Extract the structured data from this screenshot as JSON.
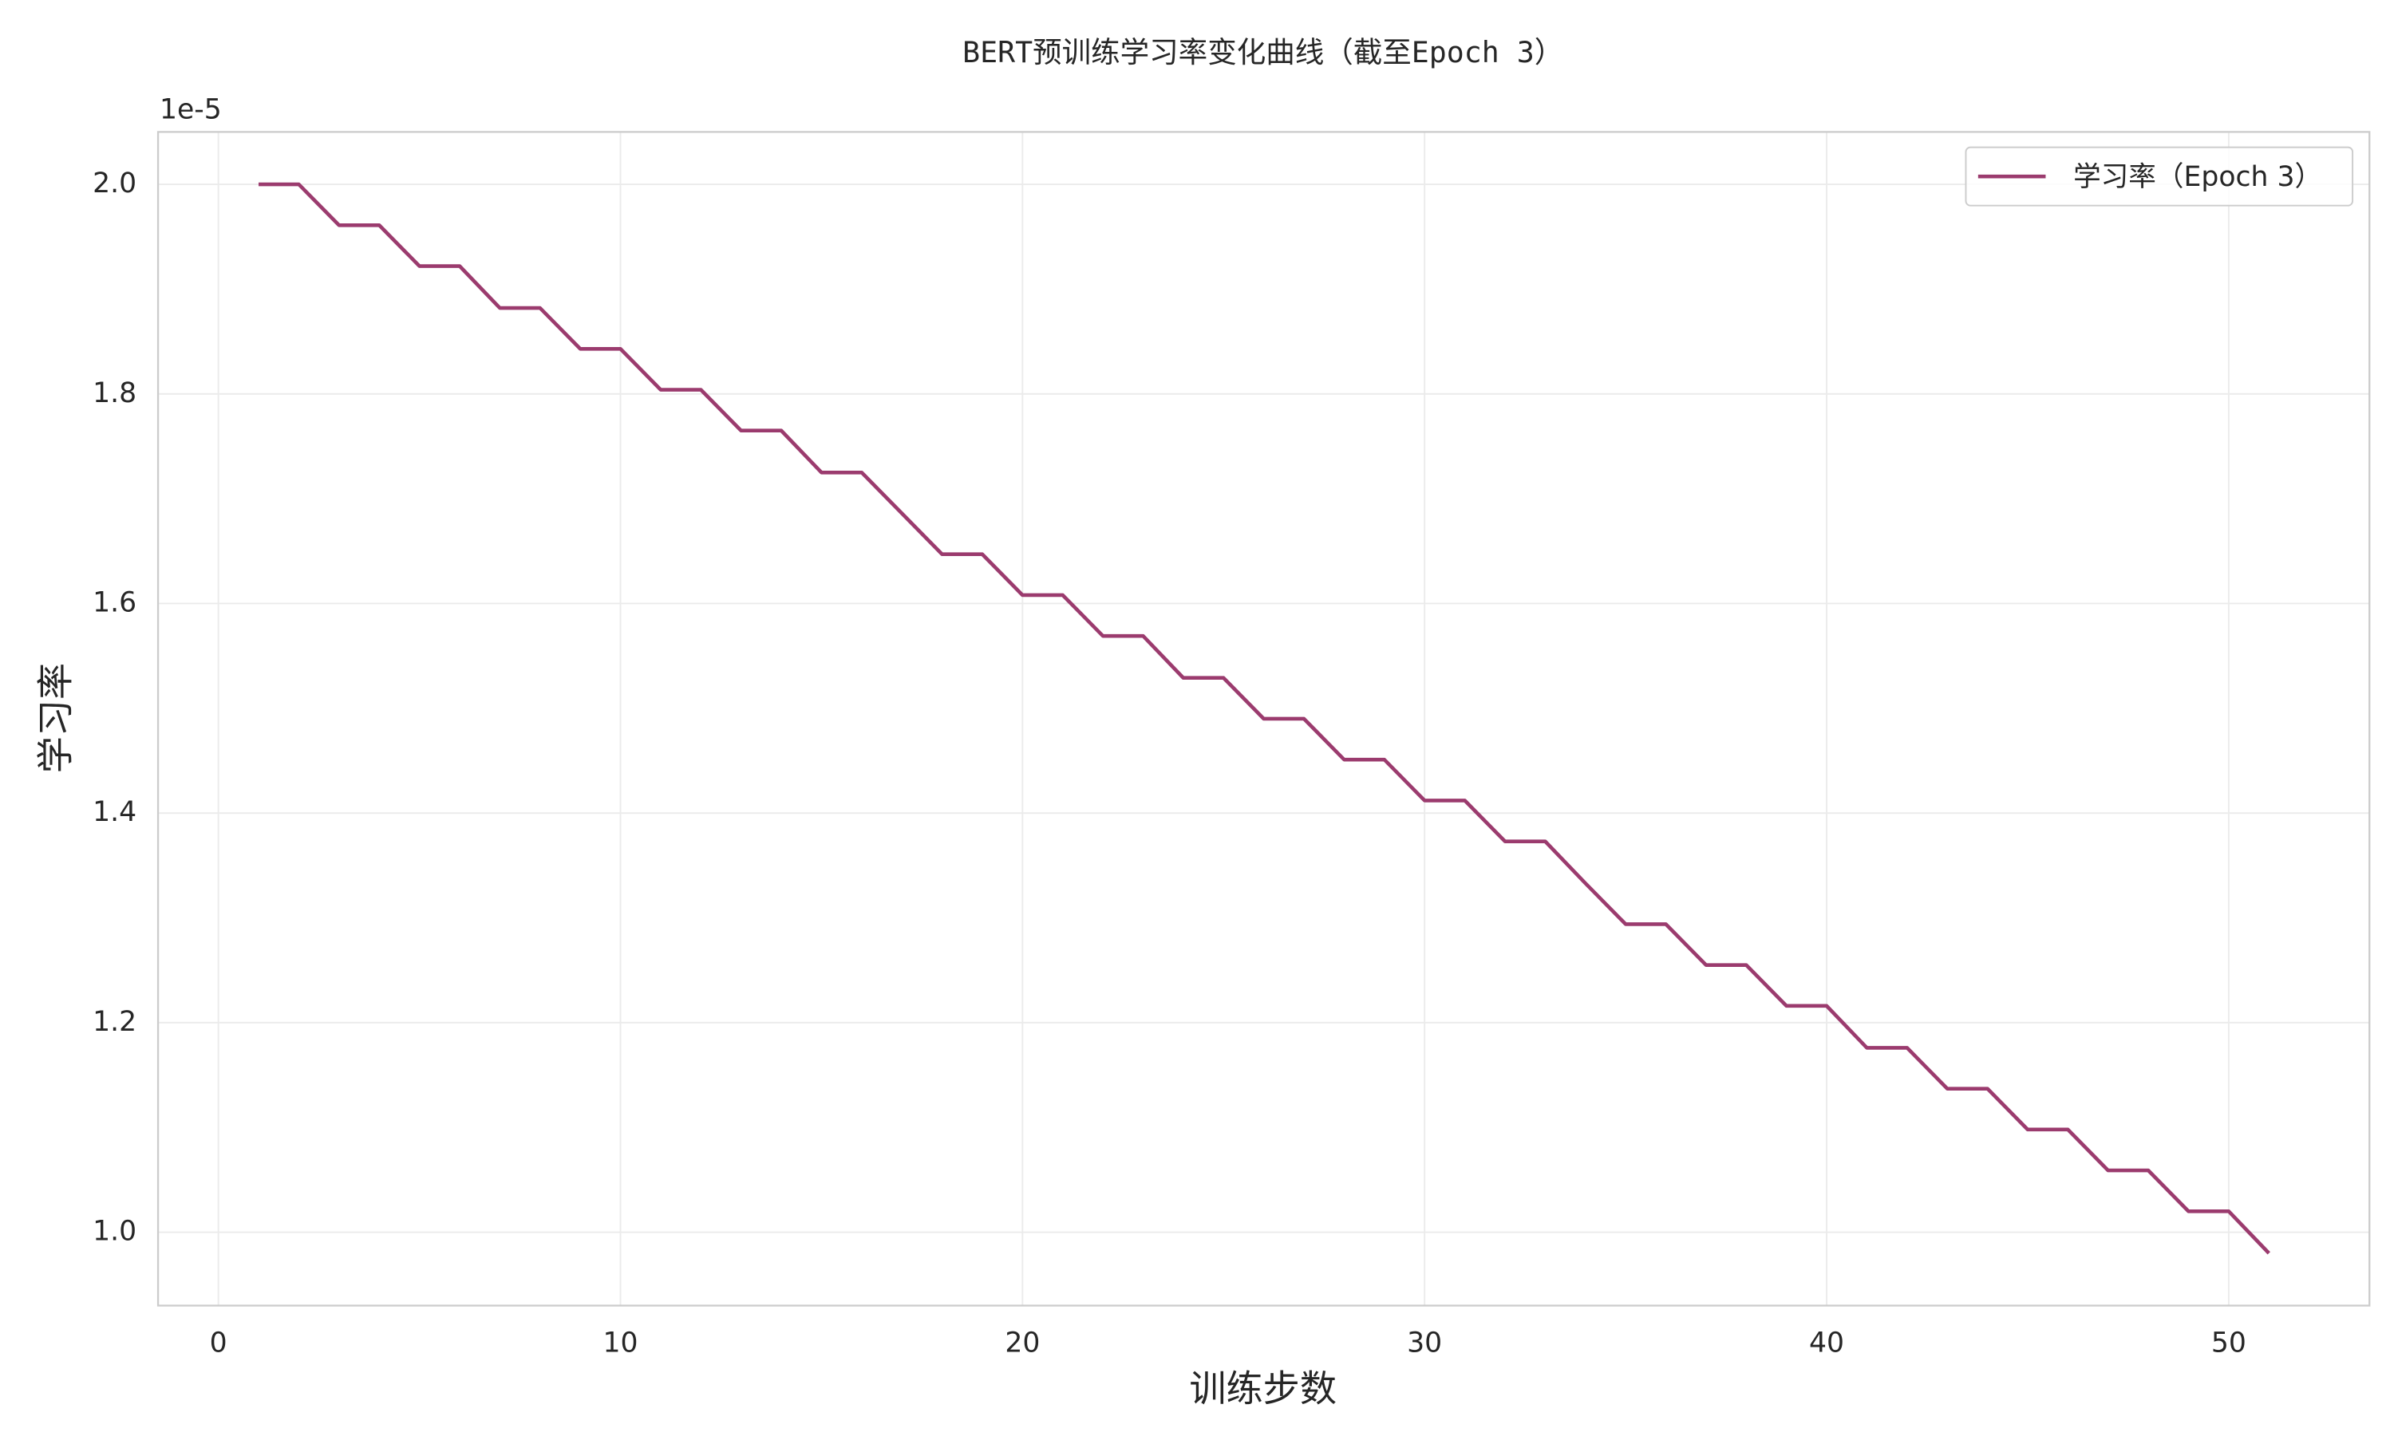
{
  "chart_data": {
    "type": "line",
    "title": "BERT预训练学习率变化曲线（截至Epoch 3）",
    "x_label": "训练步数",
    "y_label": "学习率",
    "y_offset_label": "1e-5",
    "x": [
      1,
      2,
      3,
      4,
      5,
      6,
      7,
      8,
      9,
      10,
      11,
      12,
      13,
      14,
      15,
      16,
      17,
      18,
      19,
      20,
      21,
      22,
      23,
      24,
      25,
      26,
      27,
      28,
      29,
      30,
      31,
      32,
      33,
      34,
      35,
      36,
      37,
      38,
      39,
      40,
      41,
      42,
      43,
      44,
      45,
      46,
      47,
      48,
      49,
      50,
      51
    ],
    "series": [
      {
        "name": "学习率（Epoch 3）",
        "color": "#9b3b6e",
        "values": [
          2.0,
          2.0,
          1.961,
          1.961,
          1.922,
          1.922,
          1.882,
          1.882,
          1.843,
          1.843,
          1.804,
          1.804,
          1.765,
          1.765,
          1.725,
          1.725,
          1.686,
          1.647,
          1.647,
          1.608,
          1.608,
          1.569,
          1.569,
          1.529,
          1.529,
          1.49,
          1.49,
          1.451,
          1.451,
          1.412,
          1.412,
          1.373,
          1.373,
          1.333,
          1.294,
          1.294,
          1.255,
          1.255,
          1.216,
          1.216,
          1.176,
          1.176,
          1.137,
          1.137,
          1.098,
          1.098,
          1.059,
          1.059,
          1.02,
          1.02,
          0.98
        ]
      }
    ],
    "xlim": [
      -1.5,
      53.5
    ],
    "ylim": [
      0.93,
      2.05
    ],
    "xticks": [
      0,
      10,
      20,
      30,
      40,
      50
    ],
    "yticks": [
      {
        "value": 1,
        "label": "1.0"
      },
      1.2,
      1.4,
      1.6,
      1.8,
      {
        "value": 2,
        "label": "2.0"
      }
    ],
    "grid": true,
    "legend": "upper right"
  }
}
